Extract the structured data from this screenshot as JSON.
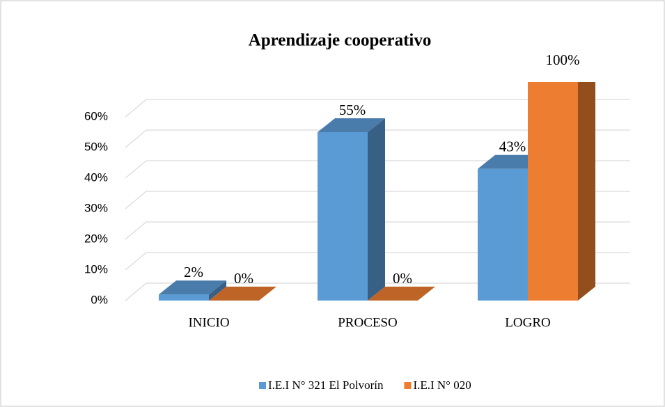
{
  "chart_data": {
    "type": "bar3d",
    "title": "Aprendizaje cooperativo",
    "categories": [
      "INICIO",
      "PROCESO",
      "LOGRO"
    ],
    "series": [
      {
        "name": "I.E.I N° 321 El Polvorín",
        "color": "#5b9bd5",
        "values": [
          2,
          55,
          43
        ],
        "value_labels": [
          "2%",
          "55%",
          "43%"
        ]
      },
      {
        "name": "I.E.I N° 020",
        "color": "#ed7d31",
        "values": [
          0,
          0,
          100
        ],
        "value_labels": [
          "0%",
          "0%",
          "100%"
        ]
      }
    ],
    "ylim": [
      0,
      60
    ],
    "yticks": [
      {
        "value": 0,
        "label": "0%"
      },
      {
        "value": 10,
        "label": "10%"
      },
      {
        "value": 20,
        "label": "20%"
      },
      {
        "value": 30,
        "label": "30%"
      },
      {
        "value": 40,
        "label": "40%"
      },
      {
        "value": 50,
        "label": "50%"
      },
      {
        "value": 60,
        "label": "60%"
      }
    ],
    "grid": true,
    "legend": "bottom"
  }
}
